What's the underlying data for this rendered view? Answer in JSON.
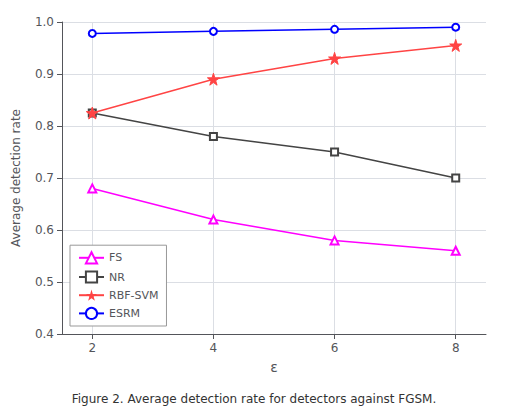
{
  "chart_data": {
    "type": "line",
    "xlabel": "ε",
    "ylabel": "Average detection rate",
    "caption": "Figure 2. Average detection rate for detectors against FGSM.",
    "x": [
      2,
      4,
      6,
      8
    ],
    "series": [
      {
        "name": "FS",
        "color": "#ff00ff",
        "marker": "triangle",
        "values": [
          0.68,
          0.62,
          0.58,
          0.56
        ]
      },
      {
        "name": "NR",
        "color": "#444444",
        "marker": "square",
        "values": [
          0.825,
          0.78,
          0.75,
          0.7
        ]
      },
      {
        "name": "RBF-SVM",
        "color": "#ff4444",
        "marker": "star",
        "values": [
          0.825,
          0.89,
          0.93,
          0.955
        ]
      },
      {
        "name": "ESRM",
        "color": "#0000ff",
        "marker": "circle",
        "values": [
          0.978,
          0.982,
          0.986,
          0.99
        ]
      }
    ],
    "xlim": [
      1.5,
      8.5
    ],
    "xticks": [
      2,
      4,
      6,
      8
    ],
    "ylim": [
      0.4,
      1.0
    ],
    "yticks": [
      0.4,
      0.5,
      0.6,
      0.7,
      0.8,
      0.9,
      {
        "value": 1.0,
        "label": "1.0"
      }
    ],
    "grid": true,
    "legend": "lower left"
  }
}
